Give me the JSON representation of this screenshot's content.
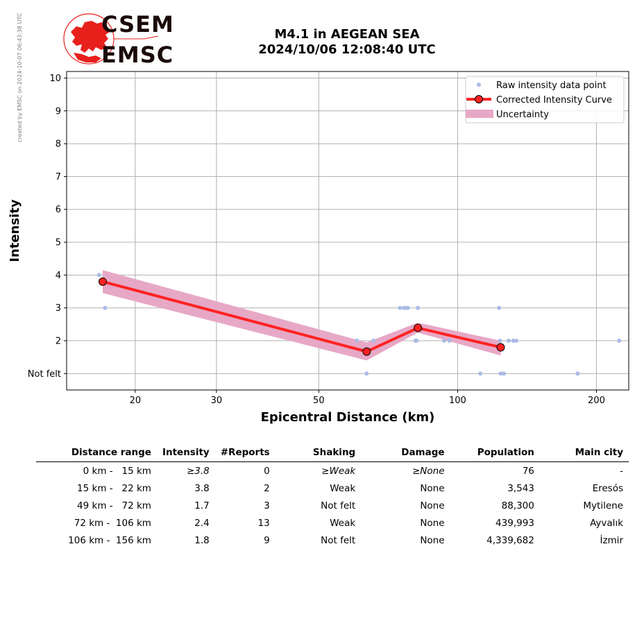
{
  "header": {
    "logo_top": "CSEM",
    "logo_bottom": "EMSC",
    "title_line1": "M4.1 in AEGEAN SEA",
    "title_line2": "2024/10/06 12:08:40 UTC",
    "credit": "created by EMSC on 2024-10-07 06:43:38 UTC"
  },
  "colors": {
    "raw_points": "#aabbe6",
    "curve": "#ff2222",
    "curve_marker_edge": "#000000",
    "uncertainty": "#e7a8c6",
    "logo_red": "#e8201c",
    "grid": "#b0b0b0"
  },
  "chart_data": {
    "type": "scatter",
    "xscale": "log",
    "xlim": [
      14.2,
      235
    ],
    "ylim": [
      0.5,
      10.2
    ],
    "xticks": [
      20,
      30,
      50,
      100,
      200
    ],
    "yticks": [
      1,
      2,
      3,
      4,
      5,
      6,
      7,
      8,
      9,
      10
    ],
    "ytick_labels": [
      "Not felt",
      "2",
      "3",
      "4",
      "5",
      "6",
      "7",
      "8",
      "9",
      "10"
    ],
    "xlabel": "Epicentral Distance (km)",
    "ylabel": "Intensity",
    "grid": true,
    "legend_position": "top-right",
    "legend": [
      "Raw intensity data point",
      "Corrected Intensity Curve",
      "Uncertainty"
    ],
    "raw_points": [
      [
        16.7,
        4
      ],
      [
        17.2,
        3
      ],
      [
        60.5,
        2
      ],
      [
        63.5,
        1
      ],
      [
        65.7,
        2
      ],
      [
        75,
        3
      ],
      [
        76.5,
        3
      ],
      [
        77.5,
        3
      ],
      [
        78,
        3
      ],
      [
        81,
        2
      ],
      [
        81.5,
        2
      ],
      [
        82,
        3
      ],
      [
        93.5,
        2
      ],
      [
        96,
        2
      ],
      [
        112,
        1
      ],
      [
        123,
        3
      ],
      [
        123.5,
        2
      ],
      [
        124,
        1
      ],
      [
        126,
        1
      ],
      [
        129,
        2
      ],
      [
        132,
        2
      ],
      [
        134,
        2
      ],
      [
        182,
        1
      ],
      [
        224,
        2
      ]
    ],
    "curve": {
      "x": [
        17,
        63.5,
        82,
        124
      ],
      "y": [
        3.8,
        1.67,
        2.39,
        1.8
      ]
    },
    "uncertainty": {
      "x": [
        17,
        63.5,
        82,
        124
      ],
      "upper": [
        4.15,
        1.95,
        2.55,
        2.0
      ],
      "lower": [
        3.45,
        1.4,
        2.25,
        1.55
      ]
    }
  },
  "table": {
    "headers": [
      "Distance range",
      "Intensity",
      "#Reports",
      "Shaking",
      "Damage",
      "Population",
      "Main city"
    ],
    "rows": [
      [
        "0 km -   15 km",
        "≥3.8",
        "0",
        "≥Weak",
        "≥None",
        "76",
        "-"
      ],
      [
        "15 km -   22 km",
        "3.8",
        "2",
        "Weak",
        "None",
        "3,543",
        "Eresós"
      ],
      [
        "49 km -   72 km",
        "1.7",
        "3",
        "Not felt",
        "None",
        "88,300",
        "Mytilene"
      ],
      [
        "72 km -  106 km",
        "2.4",
        "13",
        "Weak",
        "None",
        "439,993",
        "Ayvalık"
      ],
      [
        "106 km -  156 km",
        "1.8",
        "9",
        "Not felt",
        "None",
        "4,339,682",
        "İzmir"
      ]
    ]
  }
}
